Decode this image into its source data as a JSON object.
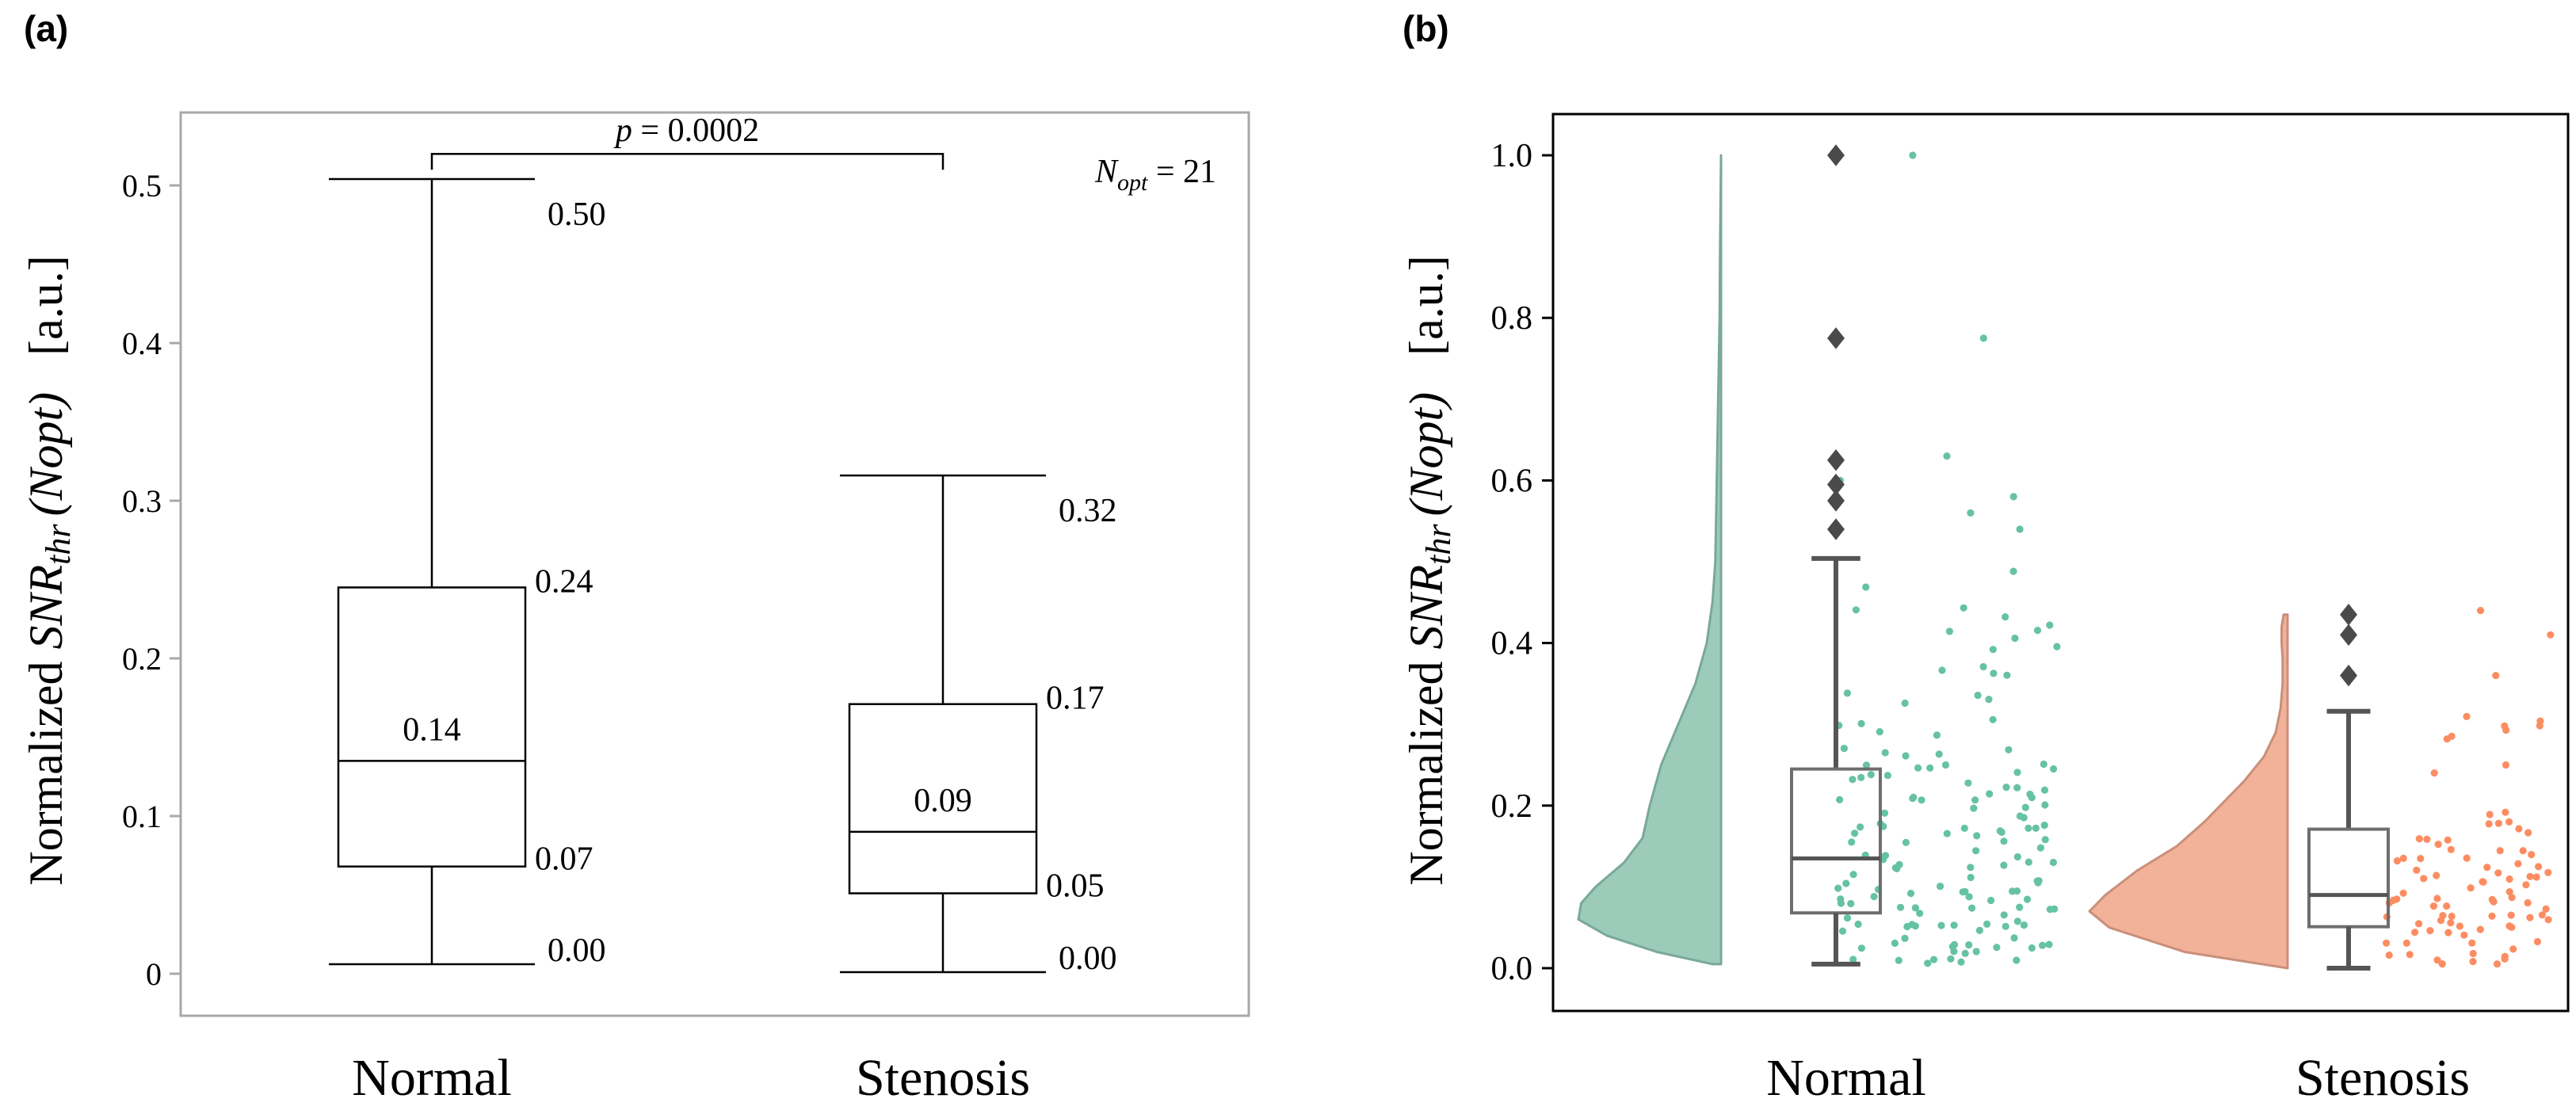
{
  "chart_data": [
    {
      "panel": "(a)",
      "type": "box",
      "ylabel": {
        "main": "Normalized ",
        "italic_base": "SNR",
        "italic_sub": "thr",
        "paren": "(Nopt)",
        "unit": "[a.u.]"
      },
      "ylim": [
        0,
        0.55
      ],
      "yticks": [
        0,
        0.1,
        0.2,
        0.3,
        0.4,
        0.5
      ],
      "ytick_labels": [
        "0",
        "0.1",
        "0.2",
        "0.3",
        "0.4",
        "0.5"
      ],
      "categories": [
        "Normal",
        "Stenosis"
      ],
      "boxes": [
        {
          "min": 0.006,
          "q1": 0.068,
          "median": 0.135,
          "q3": 0.245,
          "max": 0.504,
          "labels": {
            "min": "0.00",
            "q1": "0.07",
            "median": "0.14",
            "q3": "0.24",
            "max": "0.50"
          }
        },
        {
          "min": 0.001,
          "q1": 0.051,
          "median": 0.09,
          "q3": 0.171,
          "max": 0.316,
          "labels": {
            "min": "0.00",
            "q1": "0.05",
            "median": "0.09",
            "q3": "0.17",
            "max": "0.32"
          }
        }
      ],
      "significance": {
        "text": "p = 0.0002",
        "p_italic": "p",
        "p_rest": " = 0.0002",
        "y": 0.52
      },
      "annotation": {
        "base": "N",
        "sub": "opt",
        "rest": " = 21"
      }
    },
    {
      "panel": "(b)",
      "type": "raincloud",
      "ylabel": {
        "main": "Normalized ",
        "italic_base": "SNR",
        "italic_sub": "thr",
        "paren": "(Nopt)",
        "unit": "[a.u.]"
      },
      "ylim": [
        -0.05,
        1.05
      ],
      "yticks": [
        0,
        0.2,
        0.4,
        0.6,
        0.8,
        1.0
      ],
      "ytick_labels": [
        "0.0",
        "0.2",
        "0.4",
        "0.6",
        "0.8",
        "1.0"
      ],
      "categories": [
        "Normal",
        "Stenosis"
      ],
      "colors": {
        "Normal": "#66c2a5",
        "Stenosis": "#fc8d62",
        "Normal_violin": "#9ccbba",
        "Stenosis_violin": "#f1b299"
      },
      "boxes": [
        {
          "min": 0.005,
          "q1": 0.068,
          "median": 0.135,
          "q3": 0.245,
          "max": 0.504,
          "outliers": [
            0.54,
            0.575,
            0.595,
            0.625,
            0.775,
            1.0
          ]
        },
        {
          "min": 0.0,
          "q1": 0.051,
          "median": 0.09,
          "q3": 0.171,
          "max": 0.316,
          "outliers": [
            0.36,
            0.41,
            0.435
          ]
        }
      ],
      "violins": [
        {
          "max": 1.0,
          "y": [
            0.005,
            0.02,
            0.04,
            0.06,
            0.08,
            0.1,
            0.13,
            0.16,
            0.2,
            0.25,
            0.3,
            0.35,
            0.4,
            0.45,
            0.5,
            0.6,
            0.7,
            0.8,
            0.9,
            1.0
          ],
          "width": [
            0.06,
            0.45,
            0.8,
            1.0,
            0.98,
            0.88,
            0.68,
            0.55,
            0.5,
            0.42,
            0.3,
            0.18,
            0.1,
            0.06,
            0.04,
            0.03,
            0.02,
            0.01,
            0.006,
            0.0
          ]
        },
        {
          "max": 0.435,
          "y": [
            0.0,
            0.02,
            0.05,
            0.07,
            0.09,
            0.12,
            0.15,
            0.18,
            0.2,
            0.23,
            0.26,
            0.29,
            0.32,
            0.35,
            0.38,
            0.4,
            0.42,
            0.435
          ],
          "width": [
            0.0,
            0.52,
            0.9,
            1.0,
            0.92,
            0.76,
            0.56,
            0.42,
            0.34,
            0.22,
            0.12,
            0.06,
            0.035,
            0.025,
            0.025,
            0.03,
            0.03,
            0.02
          ]
        }
      ],
      "points": [
        {
          "count": 150,
          "seed": 11,
          "outliers": [
            0.54,
            0.56,
            0.58,
            0.6,
            0.63,
            0.775,
            1.0
          ]
        },
        {
          "count": 90,
          "seed": 23,
          "outliers": [
            0.36,
            0.41,
            0.44
          ]
        }
      ]
    }
  ]
}
